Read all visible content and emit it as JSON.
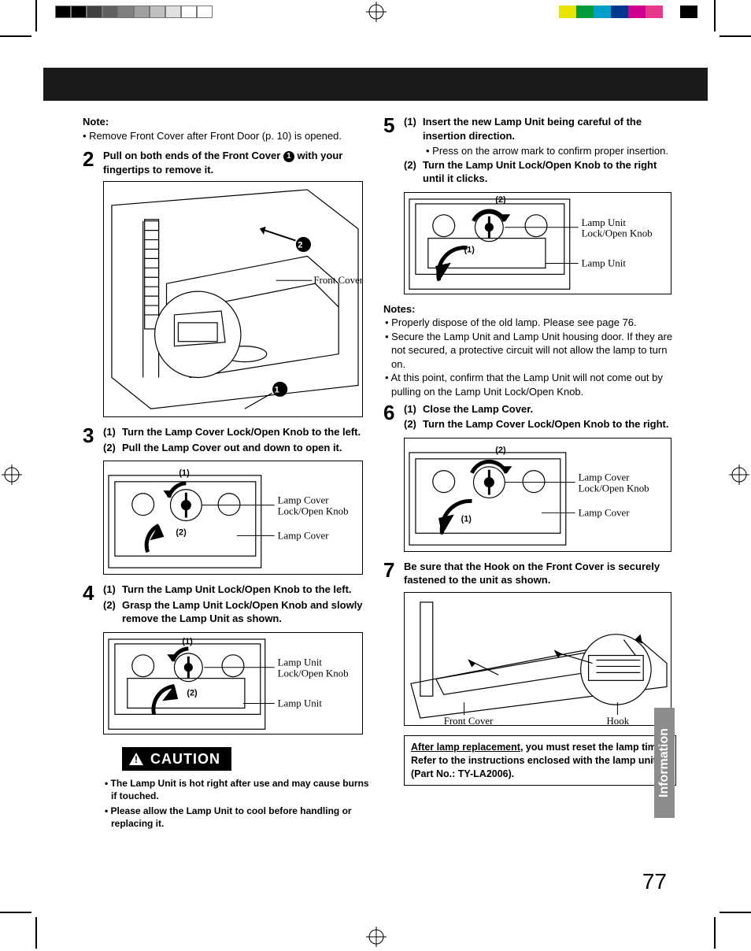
{
  "page_number": "77",
  "side_tab": "Information",
  "black_band_height": 42,
  "colorbar_left": [
    "#000000",
    "#000000",
    "#404040",
    "#606060",
    "#808080",
    "#a0a0a0",
    "#c0c0c0",
    "#e0e0e0",
    "#ffffff",
    "#ffffff"
  ],
  "colorbar_right": [
    "#e8e400",
    "#009c3b",
    "#00a0c8",
    "#003790",
    "#d00090",
    "#e83a8c",
    "#ffffff",
    "#000000"
  ],
  "note_top": {
    "title": "Note:",
    "text": "• Remove Front Cover after Front Door (p. 10) is opened."
  },
  "step2": {
    "num": "2",
    "pre": "Pull on both ends of the Front Cover ",
    "circ": "1",
    "post": " with your fingertips to remove it.",
    "label_front_cover": "Front Cover",
    "circ2": "2"
  },
  "step3": {
    "num": "3",
    "s1n": "(1)",
    "s1": "Turn the Lamp Cover Lock/Open Knob to the left.",
    "s2n": "(2)",
    "s2": "Pull the Lamp Cover out and down to open it.",
    "labels": {
      "knob": "Lamp Cover\nLock/Open Knob",
      "cover": "Lamp Cover"
    },
    "d1": "(1)",
    "d2": "(2)"
  },
  "step4": {
    "num": "4",
    "s1n": "(1)",
    "s1": "Turn the Lamp Unit Lock/Open Knob to the left.",
    "s2n": "(2)",
    "s2": "Grasp the Lamp Unit Lock/Open Knob and slowly remove the Lamp Unit as shown.",
    "labels": {
      "knob": "Lamp Unit\nLock/Open Knob",
      "unit": "Lamp Unit"
    },
    "d1": "(1)",
    "d2": "(2)"
  },
  "caution": {
    "title": "CAUTION",
    "b1": "• The Lamp Unit is hot right after use and may cause burns if touched.",
    "b2": "• Please allow the Lamp Unit to cool before handling or replacing it."
  },
  "step5": {
    "num": "5",
    "s1n": "(1)",
    "s1": "Insert the new Lamp Unit being careful of the insertion direction.",
    "s1sub": "•  Press on the arrow mark to conﬁrm proper insertion.",
    "s2n": "(2)",
    "s2": "Turn the Lamp Unit Lock/Open Knob to the right until it clicks.",
    "labels": {
      "knob": "Lamp Unit\nLock/Open Knob",
      "unit": "Lamp Unit"
    },
    "d1": "(1)",
    "d2": "(2)"
  },
  "notes5": {
    "title": "Notes:",
    "b1": "• Properly dispose of the old lamp. Please see page 76.",
    "b2": "• Secure the Lamp Unit and Lamp Unit housing door. If they are not secured, a protective circuit will not allow the lamp to turn on.",
    "b3": "• At this point, conﬁrm that the Lamp Unit will not come out by pulling on the Lamp Unit Lock/Open Knob."
  },
  "step6": {
    "num": "6",
    "s1n": "(1)",
    "s1": "Close the Lamp Cover.",
    "s2n": "(2)",
    "s2": "Turn the Lamp Cover Lock/Open Knob to the right.",
    "labels": {
      "knob": "Lamp Cover\nLock/Open Knob",
      "cover": "Lamp Cover"
    },
    "d1": "(1)",
    "d2": "(2)"
  },
  "step7": {
    "num": "7",
    "text": "Be sure that the Hook on the Front Cover is securely fastened to the unit as shown.",
    "labels": {
      "front": "Front Cover",
      "hook": "Hook"
    }
  },
  "after": {
    "u": "After lamp replacement",
    "rest": ", you must reset the lamp time. Refer to the instructions enclosed with the lamp unit (Part No.: TY-LA2006)."
  }
}
